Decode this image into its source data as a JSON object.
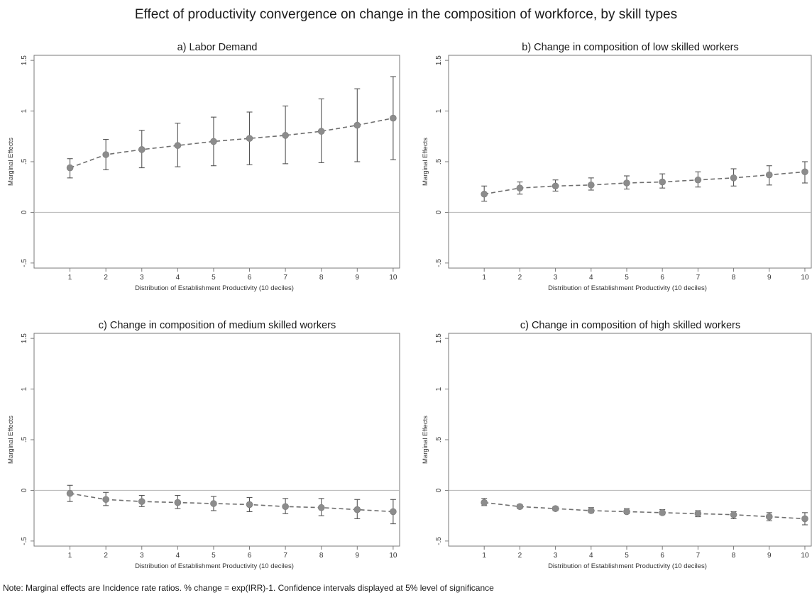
{
  "title": "Effect of productivity convergence on change in the composition of workforce, by skill types",
  "note": "Note: Marginal effects are Incidence rate ratios. % change = exp(IRR)-1. Confidence intervals displayed at 5% level of significance",
  "colors": {
    "marker": "#8c8c8c",
    "line": "#6e6e6e",
    "errorbar": "#555555",
    "frame": "#7a7a7a",
    "zero_line": "#b5b5b5"
  },
  "chart_data": [
    {
      "type": "line",
      "title": "a) Labor Demand",
      "xlabel": "Distribution of Establishment Productivity (10 deciles)",
      "ylabel": "Marginal Effects",
      "x": [
        1,
        2,
        3,
        4,
        5,
        6,
        7,
        8,
        9,
        10
      ],
      "xticks": [
        "1",
        "2",
        "3",
        "4",
        "5",
        "6",
        "7",
        "8",
        "9",
        "10"
      ],
      "yticks": [
        -0.5,
        0,
        0.5,
        1,
        1.5
      ],
      "ytick_labels": [
        "-.5",
        "0",
        ".5",
        "1",
        "1.5"
      ],
      "ylim": [
        -0.55,
        1.55
      ],
      "xlim": [
        0,
        10.2
      ],
      "zero_line": true,
      "series": [
        {
          "values": [
            0.44,
            0.57,
            0.62,
            0.66,
            0.7,
            0.73,
            0.76,
            0.8,
            0.86,
            0.93
          ],
          "ci_low": [
            0.34,
            0.42,
            0.44,
            0.45,
            0.46,
            0.47,
            0.48,
            0.49,
            0.5,
            0.52
          ],
          "ci_high": [
            0.53,
            0.72,
            0.81,
            0.88,
            0.94,
            0.99,
            1.05,
            1.12,
            1.22,
            1.34
          ]
        }
      ]
    },
    {
      "type": "line",
      "title": "b) Change in composition of low skilled workers",
      "xlabel": "Distribution of Establishment Productivity (10 deciles)",
      "ylabel": "Marginal Effects",
      "x": [
        1,
        2,
        3,
        4,
        5,
        6,
        7,
        8,
        9,
        10
      ],
      "xticks": [
        "1",
        "2",
        "3",
        "4",
        "5",
        "6",
        "7",
        "8",
        "9",
        "10"
      ],
      "yticks": [
        -0.5,
        0,
        0.5,
        1,
        1.5
      ],
      "ytick_labels": [
        "-.5",
        "0",
        ".5",
        "1",
        "1.5"
      ],
      "ylim": [
        -0.55,
        1.55
      ],
      "xlim": [
        0,
        10.2
      ],
      "zero_line": true,
      "series": [
        {
          "values": [
            0.18,
            0.24,
            0.26,
            0.27,
            0.29,
            0.3,
            0.32,
            0.34,
            0.37,
            0.4
          ],
          "ci_low": [
            0.11,
            0.18,
            0.21,
            0.22,
            0.23,
            0.24,
            0.25,
            0.26,
            0.27,
            0.29
          ],
          "ci_high": [
            0.26,
            0.3,
            0.32,
            0.34,
            0.36,
            0.38,
            0.4,
            0.43,
            0.46,
            0.5
          ]
        }
      ]
    },
    {
      "type": "line",
      "title": "c) Change in composition of medium skilled workers",
      "xlabel": "Distribution of Establishment Productivity (10 deciles)",
      "ylabel": "Marginal Effects",
      "x": [
        1,
        2,
        3,
        4,
        5,
        6,
        7,
        8,
        9,
        10
      ],
      "xticks": [
        "1",
        "2",
        "3",
        "4",
        "5",
        "6",
        "7",
        "8",
        "9",
        "10"
      ],
      "yticks": [
        -0.5,
        0,
        0.5,
        1,
        1.5
      ],
      "ytick_labels": [
        "-.5",
        "0",
        ".5",
        "1",
        "1.5"
      ],
      "ylim": [
        -0.55,
        1.55
      ],
      "xlim": [
        0,
        10.2
      ],
      "zero_line": true,
      "series": [
        {
          "values": [
            -0.03,
            -0.09,
            -0.11,
            -0.12,
            -0.13,
            -0.14,
            -0.16,
            -0.17,
            -0.19,
            -0.21
          ],
          "ci_low": [
            -0.11,
            -0.15,
            -0.16,
            -0.18,
            -0.2,
            -0.21,
            -0.23,
            -0.25,
            -0.28,
            -0.33
          ],
          "ci_high": [
            0.05,
            -0.02,
            -0.05,
            -0.05,
            -0.06,
            -0.07,
            -0.08,
            -0.08,
            -0.09,
            -0.09
          ]
        }
      ]
    },
    {
      "type": "line",
      "title": "c) Change in composition of high skilled workers",
      "xlabel": "Distribution of Establishment Productivity (10 deciles)",
      "ylabel": "Marginal Effects",
      "x": [
        1,
        2,
        3,
        4,
        5,
        6,
        7,
        8,
        9,
        10
      ],
      "xticks": [
        "1",
        "2",
        "3",
        "4",
        "5",
        "6",
        "7",
        "8",
        "9",
        "10"
      ],
      "yticks": [
        -0.5,
        0,
        0.5,
        1,
        1.5
      ],
      "ytick_labels": [
        "-.5",
        "0",
        ".5",
        "1",
        "1.5"
      ],
      "ylim": [
        -0.55,
        1.55
      ],
      "xlim": [
        0,
        10.2
      ],
      "zero_line": true,
      "series": [
        {
          "values": [
            -0.12,
            -0.16,
            -0.18,
            -0.2,
            -0.21,
            -0.22,
            -0.23,
            -0.24,
            -0.26,
            -0.28
          ],
          "ci_low": [
            -0.15,
            -0.18,
            -0.2,
            -0.22,
            -0.23,
            -0.24,
            -0.26,
            -0.28,
            -0.3,
            -0.34
          ],
          "ci_high": [
            -0.08,
            -0.14,
            -0.16,
            -0.17,
            -0.18,
            -0.19,
            -0.2,
            -0.21,
            -0.22,
            -0.22
          ]
        }
      ]
    }
  ]
}
